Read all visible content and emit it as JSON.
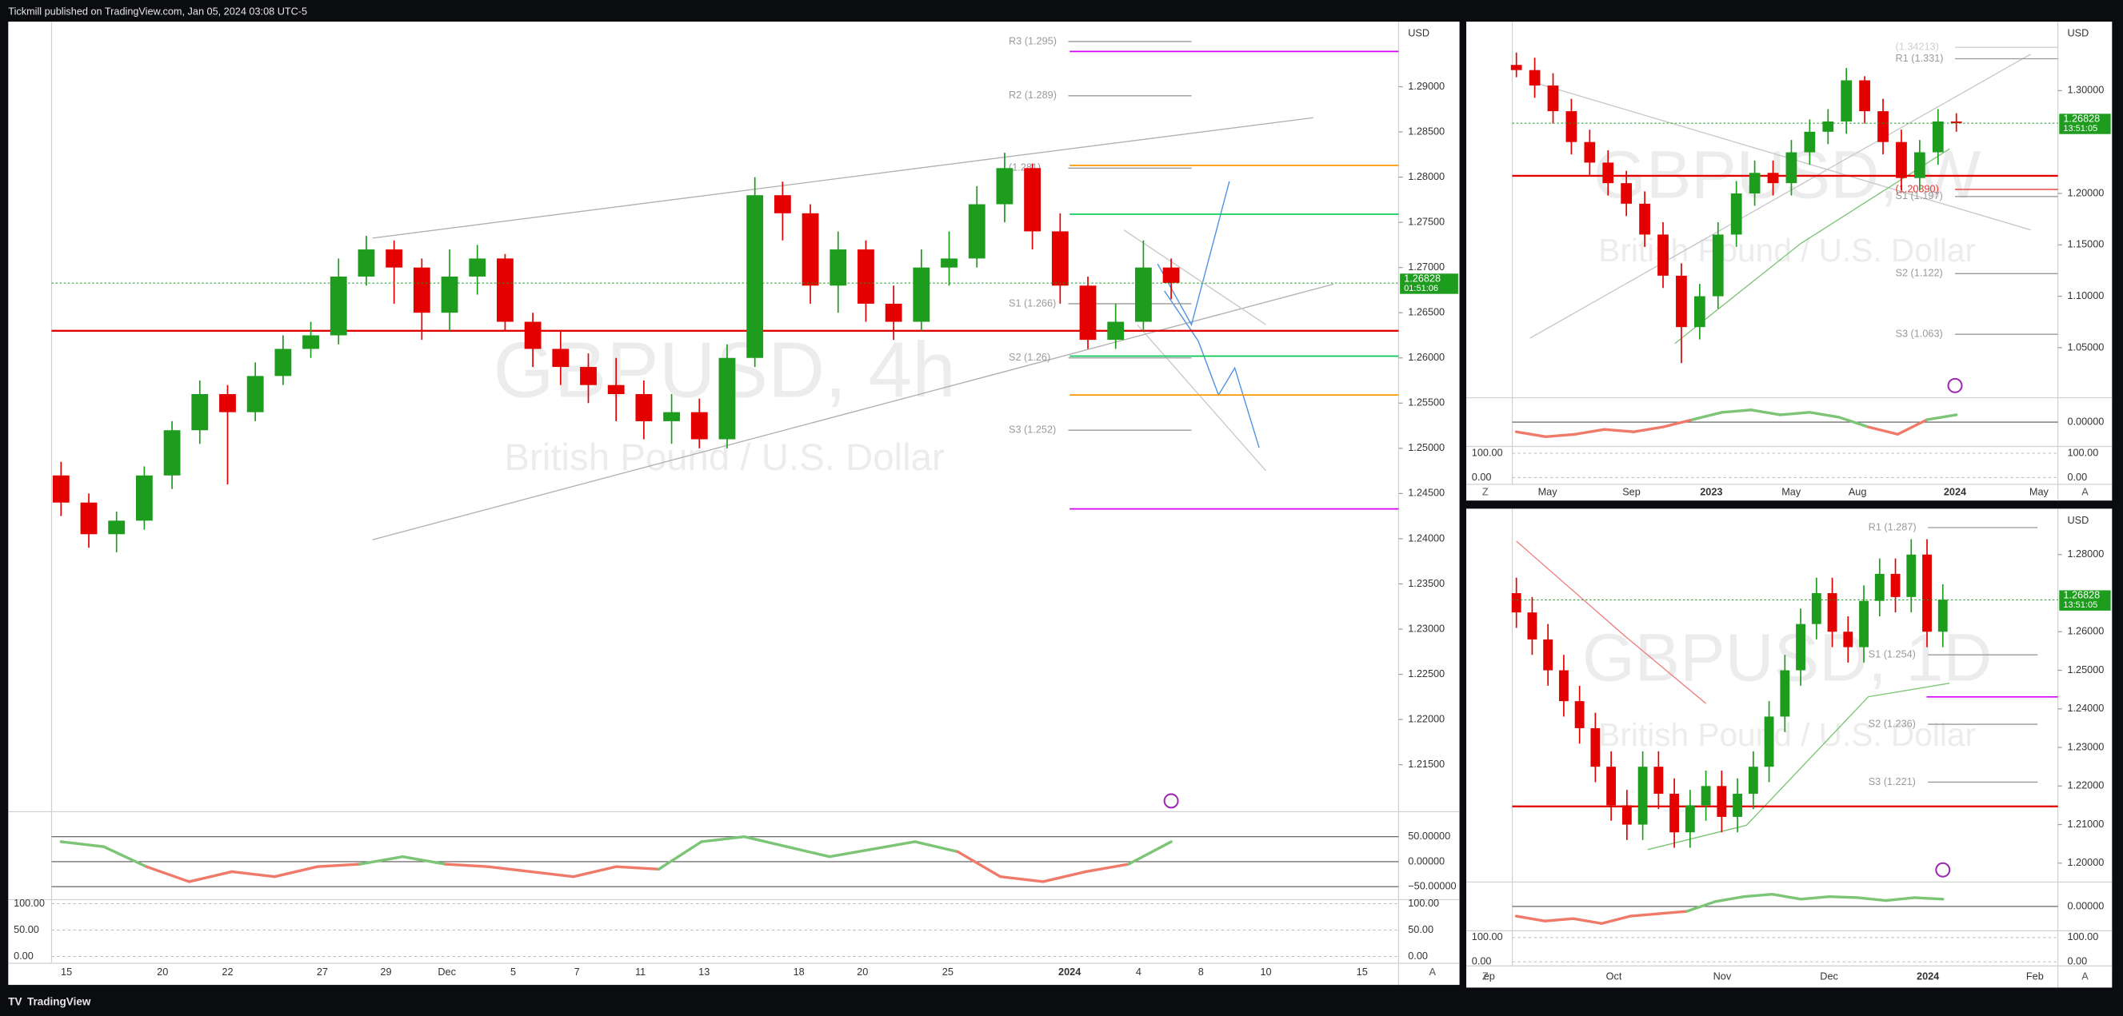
{
  "header": {
    "publisher": "Tickmill published on TradingView.com, Jan 05, 2024 03:08 UTC-5"
  },
  "footer": {
    "brand": "TradingView"
  },
  "chart_data": [
    {
      "type": "candlestick",
      "title": "GBPUSD, 4h",
      "subtitle": "British Pound / U.S. Dollar",
      "currency": "USD",
      "up_color": "#1e9c1e",
      "down_color": "#e50000",
      "pivot_color": "#9a9a9a",
      "ylim": [
        1.2101,
        1.2972
      ],
      "yticks": [
        {
          "value": 1.215,
          "label": "1.21500"
        },
        {
          "value": 1.22,
          "label": "1.22000"
        },
        {
          "value": 1.225,
          "label": "1.22500"
        },
        {
          "value": 1.23,
          "label": "1.23000"
        },
        {
          "value": 1.235,
          "label": "1.23500"
        },
        {
          "value": 1.24,
          "label": "1.24000"
        },
        {
          "value": 1.245,
          "label": "1.24500"
        },
        {
          "value": 1.25,
          "label": "1.25000"
        },
        {
          "value": 1.255,
          "label": "1.25500"
        },
        {
          "value": 1.26,
          "label": "1.26000"
        },
        {
          "value": 1.265,
          "label": "1.26500"
        },
        {
          "value": 1.27,
          "label": "1.27000"
        },
        {
          "value": 1.275,
          "label": "1.27500"
        },
        {
          "value": 1.28,
          "label": "1.28000"
        },
        {
          "value": 1.285,
          "label": "1.28500"
        },
        {
          "value": 1.29,
          "label": "1.29000"
        }
      ],
      "xticks": [
        "15",
        "20",
        "22",
        "27",
        "29",
        "Dec",
        "5",
        "7",
        "11",
        "13",
        "18",
        "20",
        "25",
        "2024",
        "4",
        "8",
        "10",
        "15"
      ],
      "open": [
        1.247,
        1.244,
        1.2405,
        1.242,
        1.247,
        1.252,
        1.256,
        1.254,
        1.258,
        1.261,
        1.2625,
        1.269,
        1.272,
        1.27,
        1.265,
        1.269,
        1.271,
        1.264,
        1.261,
        1.259,
        1.257,
        1.256,
        1.253,
        1.254,
        1.251,
        1.26,
        1.278,
        1.276,
        1.268,
        1.272,
        1.266,
        1.264,
        1.27,
        1.271,
        1.277,
        1.281,
        1.274,
        1.268,
        1.262,
        1.264,
        1.27
      ],
      "high": [
        1.2485,
        1.245,
        1.243,
        1.248,
        1.253,
        1.2575,
        1.257,
        1.2595,
        1.2625,
        1.264,
        1.271,
        1.2735,
        1.273,
        1.271,
        1.272,
        1.2725,
        1.2715,
        1.265,
        1.263,
        1.2605,
        1.26,
        1.2575,
        1.256,
        1.2555,
        1.2615,
        1.28,
        1.2795,
        1.277,
        1.274,
        1.273,
        1.268,
        1.272,
        1.274,
        1.279,
        1.2827,
        1.2815,
        1.276,
        1.269,
        1.266,
        1.273,
        1.271
      ],
      "low": [
        1.2425,
        1.239,
        1.2385,
        1.241,
        1.2455,
        1.2505,
        1.246,
        1.253,
        1.257,
        1.26,
        1.2615,
        1.268,
        1.266,
        1.262,
        1.263,
        1.267,
        1.263,
        1.259,
        1.257,
        1.255,
        1.253,
        1.251,
        1.2505,
        1.25,
        1.25,
        1.259,
        1.273,
        1.266,
        1.265,
        1.264,
        1.262,
        1.263,
        1.268,
        1.27,
        1.275,
        1.272,
        1.266,
        1.261,
        1.261,
        1.263,
        1.2665
      ],
      "close": [
        1.244,
        1.2405,
        1.242,
        1.247,
        1.252,
        1.256,
        1.254,
        1.258,
        1.261,
        1.2625,
        1.269,
        1.272,
        1.27,
        1.265,
        1.269,
        1.271,
        1.264,
        1.261,
        1.259,
        1.257,
        1.256,
        1.253,
        1.254,
        1.251,
        1.26,
        1.278,
        1.276,
        1.268,
        1.272,
        1.266,
        1.264,
        1.27,
        1.271,
        1.277,
        1.281,
        1.274,
        1.268,
        1.262,
        1.264,
        1.27,
        1.2683
      ],
      "last_price": {
        "value": 1.26828,
        "label": "1.26828"
      },
      "countdown": "01:51:06",
      "pivots": [
        {
          "value": 1.295,
          "label": "R3 (1.295)"
        },
        {
          "value": 1.289,
          "label": "R2 (1.289)"
        },
        {
          "value": 1.281,
          "label": "(1.281)"
        },
        {
          "value": 1.266,
          "label": "S1 (1.266)"
        },
        {
          "value": 1.26,
          "label": "S2 (1.26)"
        },
        {
          "value": 1.252,
          "label": "S3 (1.252)"
        }
      ],
      "levels": [
        {
          "value": 1.2939,
          "color": "#d500f9"
        },
        {
          "value": 1.2813,
          "color": "#ff9800"
        },
        {
          "value": 1.2759,
          "color": "#00c853"
        },
        {
          "value": 1.263,
          "color": "#e50000"
        },
        {
          "value": 1.2602,
          "color": "#00c853"
        },
        {
          "value": 1.2559,
          "color": "#ff9800"
        },
        {
          "value": 1.2433,
          "color": "#d500f9"
        }
      ],
      "oscillator": {
        "ylim": [
          -76,
          100
        ],
        "yticks": [
          {
            "value": 50,
            "label": "50.00000"
          },
          {
            "value": 0,
            "label": "0.00000"
          },
          {
            "value": -50,
            "label": "−50.00000"
          }
        ],
        "values": [
          40,
          30,
          -10,
          -40,
          -20,
          -30,
          -10,
          -5,
          10,
          -5,
          -10,
          -20,
          -30,
          -10,
          -15,
          40,
          50,
          30,
          10,
          25,
          40,
          20,
          -30,
          -40,
          -20,
          -5,
          40
        ]
      },
      "stochastic": {
        "ylim": [
          -12.8,
          107.7
        ],
        "yticks": [
          {
            "value": 100,
            "label": "100.00"
          },
          {
            "value": 50,
            "label": "50.00"
          },
          {
            "value": 0,
            "label": "0.00"
          }
        ]
      },
      "button_right": "A"
    },
    {
      "type": "candlestick",
      "title": "GBPUSD, W",
      "subtitle": "British Pound / U.S. Dollar",
      "currency": "USD",
      "up_color": "#1e9c1e",
      "down_color": "#e50000",
      "pivot_color": "#9a9a9a",
      "ylim": [
        1.0039,
        1.3671
      ],
      "yticks": [
        {
          "value": 1.05,
          "label": "1.05000"
        },
        {
          "value": 1.1,
          "label": "1.10000"
        },
        {
          "value": 1.15,
          "label": "1.15000"
        },
        {
          "value": 1.2,
          "label": "1.20000"
        },
        {
          "value": 1.3,
          "label": "1.30000"
        }
      ],
      "xticks": [
        "May",
        "Sep",
        "2023",
        "May",
        "Aug",
        "2024",
        "May"
      ],
      "open": [
        1.325,
        1.32,
        1.305,
        1.28,
        1.25,
        1.23,
        1.21,
        1.19,
        1.16,
        1.12,
        1.07,
        1.1,
        1.16,
        1.2,
        1.22,
        1.21,
        1.24,
        1.26,
        1.27,
        1.31,
        1.28,
        1.25,
        1.215,
        1.24,
        1.27
      ],
      "high": [
        1.337,
        1.332,
        1.317,
        1.292,
        1.262,
        1.242,
        1.222,
        1.202,
        1.172,
        1.132,
        1.112,
        1.172,
        1.212,
        1.232,
        1.232,
        1.252,
        1.272,
        1.282,
        1.322,
        1.314,
        1.292,
        1.262,
        1.252,
        1.282,
        1.278
      ],
      "low": [
        1.313,
        1.293,
        1.268,
        1.238,
        1.218,
        1.198,
        1.178,
        1.148,
        1.108,
        1.035,
        1.058,
        1.088,
        1.148,
        1.188,
        1.198,
        1.198,
        1.228,
        1.248,
        1.258,
        1.268,
        1.238,
        1.203,
        1.203,
        1.228,
        1.26
      ],
      "close": [
        1.32,
        1.305,
        1.28,
        1.25,
        1.23,
        1.21,
        1.19,
        1.16,
        1.12,
        1.07,
        1.1,
        1.16,
        1.2,
        1.22,
        1.21,
        1.24,
        1.26,
        1.27,
        1.31,
        1.28,
        1.25,
        1.215,
        1.24,
        1.27,
        1.2683
      ],
      "last_price": {
        "value": 1.26828,
        "label": "1.26828"
      },
      "countdown": "13:51:05",
      "pivots": [
        {
          "value": 1.34213,
          "label": "(1.34213)",
          "color": "#cfcfcf"
        },
        {
          "value": 1.331,
          "label": "R1 (1.331)"
        },
        {
          "value": 1.2039,
          "label": "(1.20390)",
          "color": "#e53935"
        },
        {
          "value": 1.197,
          "label": "S1 (1.197)"
        },
        {
          "value": 1.122,
          "label": "S2 (1.122)"
        },
        {
          "value": 1.063,
          "label": "S3 (1.063)"
        }
      ],
      "levels": [
        {
          "value": 1.2171,
          "color": "#e50000"
        }
      ],
      "oscillator": {
        "ylim": [
          -50,
          50
        ],
        "yticks": [
          {
            "value": 0,
            "label": "0.00000"
          }
        ],
        "values": [
          -20,
          -30,
          -25,
          -15,
          -20,
          -10,
          5,
          20,
          25,
          15,
          20,
          10,
          -10,
          -25,
          5,
          15
        ]
      },
      "stochastic": {
        "ylim": [
          -27.8,
          127.8
        ],
        "yticks": [
          {
            "value": 100,
            "label": "100.00"
          },
          {
            "value": 0,
            "label": "0.00"
          }
        ]
      },
      "button_left": "Z",
      "button_right": "A"
    },
    {
      "type": "candlestick",
      "title": "GBPUSD, 1D",
      "subtitle": "British Pound / U.S. Dollar",
      "currency": "USD",
      "up_color": "#1e9c1e",
      "down_color": "#e50000",
      "pivot_color": "#9a9a9a",
      "ylim": [
        1.1958,
        1.2919
      ],
      "yticks": [
        {
          "value": 1.2,
          "label": "1.20000"
        },
        {
          "value": 1.21,
          "label": "1.21000"
        },
        {
          "value": 1.22,
          "label": "1.22000"
        },
        {
          "value": 1.23,
          "label": "1.23000"
        },
        {
          "value": 1.24,
          "label": "1.24000"
        },
        {
          "value": 1.25,
          "label": "1.25000"
        },
        {
          "value": 1.26,
          "label": "1.26000"
        },
        {
          "value": 1.28,
          "label": "1.28000"
        }
      ],
      "xticks": [
        "ep",
        "Oct",
        "Nov",
        "Dec",
        "2024",
        "Feb"
      ],
      "open": [
        1.27,
        1.265,
        1.258,
        1.25,
        1.242,
        1.235,
        1.225,
        1.215,
        1.21,
        1.225,
        1.218,
        1.208,
        1.215,
        1.22,
        1.212,
        1.218,
        1.225,
        1.238,
        1.25,
        1.262,
        1.27,
        1.26,
        1.256,
        1.268,
        1.275,
        1.269,
        1.28,
        1.26
      ],
      "high": [
        1.274,
        1.269,
        1.262,
        1.254,
        1.246,
        1.239,
        1.229,
        1.219,
        1.229,
        1.229,
        1.222,
        1.219,
        1.224,
        1.224,
        1.222,
        1.229,
        1.242,
        1.254,
        1.266,
        1.274,
        1.274,
        1.264,
        1.272,
        1.279,
        1.279,
        1.284,
        1.284,
        1.2723
      ],
      "low": [
        1.261,
        1.254,
        1.246,
        1.238,
        1.231,
        1.221,
        1.211,
        1.206,
        1.206,
        1.214,
        1.204,
        1.204,
        1.211,
        1.208,
        1.208,
        1.214,
        1.221,
        1.234,
        1.246,
        1.258,
        1.256,
        1.252,
        1.252,
        1.264,
        1.265,
        1.265,
        1.256,
        1.256
      ],
      "close": [
        1.265,
        1.258,
        1.25,
        1.242,
        1.235,
        1.225,
        1.215,
        1.21,
        1.225,
        1.218,
        1.208,
        1.215,
        1.22,
        1.212,
        1.218,
        1.225,
        1.238,
        1.25,
        1.262,
        1.27,
        1.26,
        1.256,
        1.268,
        1.275,
        1.269,
        1.28,
        1.26,
        1.2683
      ],
      "last_price": {
        "value": 1.26828,
        "label": "1.26828"
      },
      "countdown": "13:51:05",
      "pivots": [
        {
          "value": 1.287,
          "label": "R1 (1.287)"
        },
        {
          "value": 1.254,
          "label": "S1 (1.254)"
        },
        {
          "value": 1.236,
          "label": "S2 (1.236)"
        },
        {
          "value": 1.221,
          "label": "S3 (1.221)"
        }
      ],
      "levels": [
        {
          "value": 1.2431,
          "color": "#d500f9"
        },
        {
          "value": 1.2147,
          "color": "#e50000"
        }
      ],
      "oscillator": {
        "ylim": [
          -50,
          50
        ],
        "yticks": [
          {
            "value": 0,
            "label": "0.00000"
          }
        ],
        "values": [
          -20,
          -30,
          -25,
          -35,
          -20,
          -15,
          -10,
          10,
          20,
          25,
          15,
          20,
          18,
          12,
          18,
          15
        ]
      },
      "stochastic": {
        "ylim": [
          -16.7,
          127.8
        ],
        "yticks": [
          {
            "value": 100,
            "label": "100.00"
          },
          {
            "value": 0,
            "label": "0.00"
          }
        ]
      },
      "button_left": "Z",
      "button_right": "A"
    }
  ]
}
